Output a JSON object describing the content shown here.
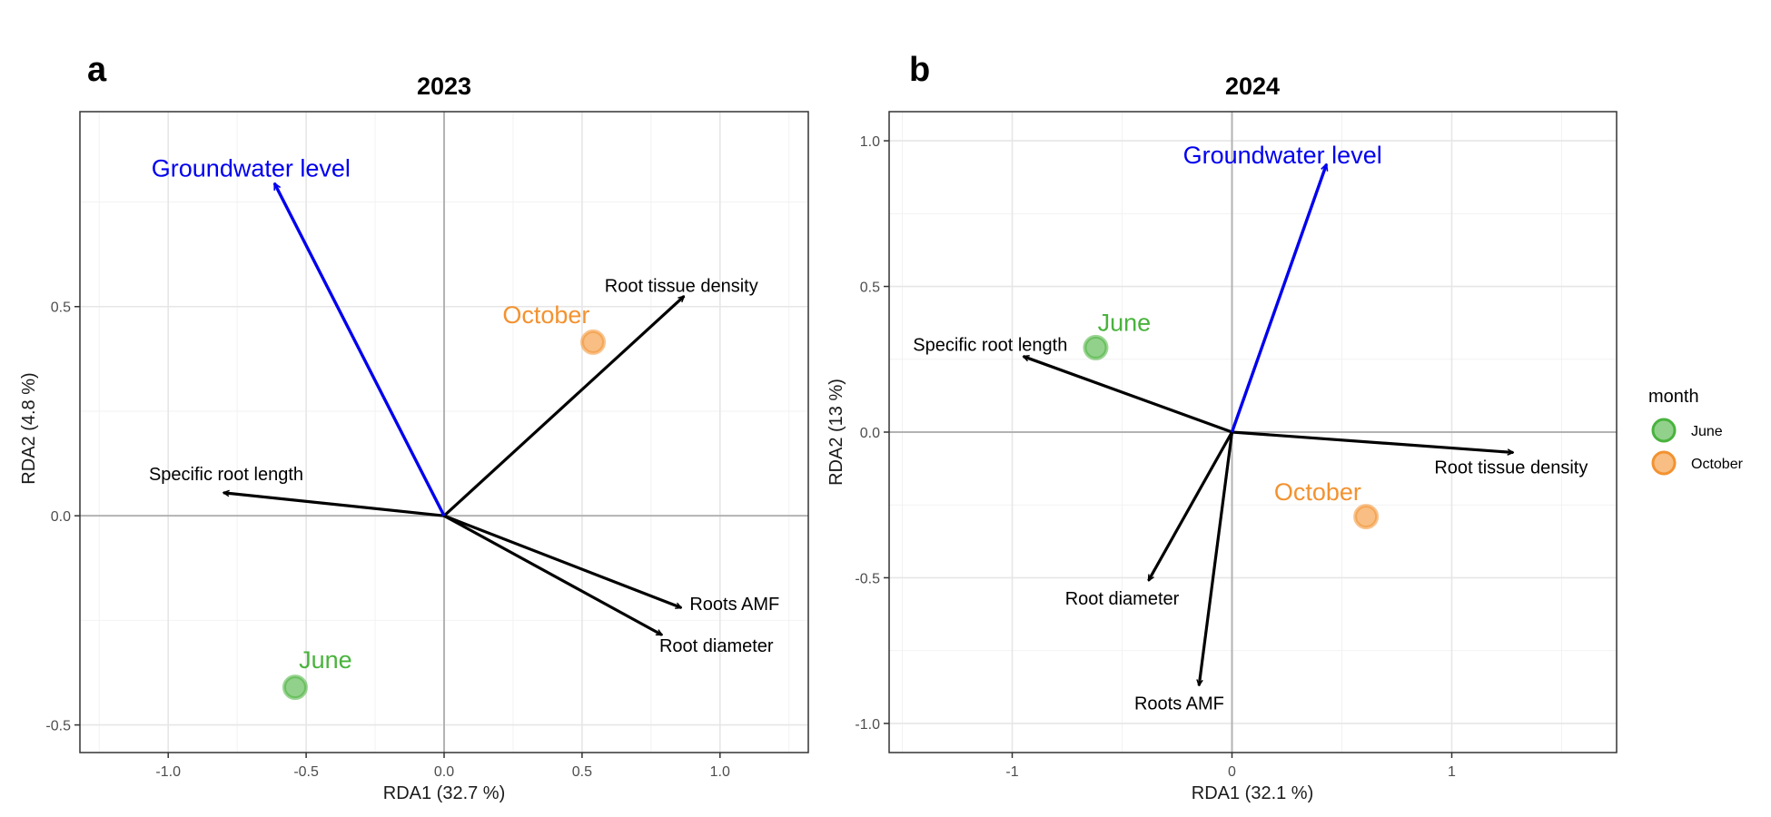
{
  "chart_data": [
    {
      "type": "scatter",
      "panel": "a",
      "title": "2023",
      "xlabel": "RDA1 (32.7 %)",
      "ylabel": "RDA2 (4.8 %)",
      "xlim": [
        -1.32,
        1.32
      ],
      "ylim": [
        -0.566,
        0.966
      ],
      "xticks": [
        -1.0,
        -0.5,
        0.0,
        0.5,
        1.0
      ],
      "xtick_labels": [
        "-1.0",
        "-0.5",
        "0.0",
        "0.5",
        "1.0"
      ],
      "yticks": [
        -0.5,
        0.0,
        0.5
      ],
      "ytick_labels": [
        "-0.5",
        "0.0",
        "0.5"
      ],
      "grid": true,
      "sites": [
        {
          "name": "June",
          "x": -0.54,
          "y": -0.41,
          "label_dx": 0.11,
          "label_dy": 0.065
        },
        {
          "name": "October",
          "x": 0.54,
          "y": 0.415,
          "label_dx": -0.17,
          "label_dy": 0.065
        }
      ],
      "species_arrows": [
        {
          "label": "Root tissue density",
          "x": 0.87,
          "y": 0.525,
          "label_x": 0.86,
          "label_y": 0.55,
          "anchor": "middle"
        },
        {
          "label": "Specific root length",
          "x": -0.8,
          "y": 0.055,
          "label_x": -0.79,
          "label_y": 0.1,
          "anchor": "middle"
        },
        {
          "label": "Roots AMF",
          "x": 0.86,
          "y": -0.22,
          "label_x": 0.89,
          "label_y": -0.21,
          "anchor": "start"
        },
        {
          "label": "Root diameter",
          "x": 0.79,
          "y": -0.285,
          "label_x": 0.78,
          "label_y": -0.31,
          "anchor": "start"
        }
      ],
      "env_arrows": [
        {
          "label": "Groundwater level",
          "x": -0.615,
          "y": 0.795,
          "label_x": -0.7,
          "label_y": 0.83,
          "anchor": "middle"
        }
      ]
    },
    {
      "type": "scatter",
      "panel": "b",
      "title": "2024",
      "xlabel": "RDA1 (32.1 %)",
      "ylabel": "RDA2 (13 %)",
      "xlim": [
        -1.56,
        1.75
      ],
      "ylim": [
        -1.1,
        1.1
      ],
      "xticks": [
        -1,
        0,
        1
      ],
      "xtick_labels": [
        "-1",
        "0",
        "1"
      ],
      "yticks": [
        -1.0,
        -0.5,
        0.0,
        0.5,
        1.0
      ],
      "ytick_labels": [
        "-1.0",
        "-0.5",
        "0.0",
        "0.5",
        "1.0"
      ],
      "grid": true,
      "sites": [
        {
          "name": "June",
          "x": -0.62,
          "y": 0.29,
          "label_dx": 0.13,
          "label_dy": 0.085
        },
        {
          "name": "October",
          "x": 0.61,
          "y": -0.29,
          "label_dx": -0.22,
          "label_dy": 0.085
        }
      ],
      "species_arrows": [
        {
          "label": "Specific root length",
          "x": -0.95,
          "y": 0.26,
          "label_x": -1.1,
          "label_y": 0.3,
          "anchor": "middle"
        },
        {
          "label": "Root tissue density",
          "x": 1.28,
          "y": -0.07,
          "label_x": 1.27,
          "label_y": -0.12,
          "anchor": "middle"
        },
        {
          "label": "Root diameter",
          "x": -0.38,
          "y": -0.51,
          "label_x": -0.5,
          "label_y": -0.57,
          "anchor": "middle"
        },
        {
          "label": "Roots AMF",
          "x": -0.15,
          "y": -0.87,
          "label_x": -0.24,
          "label_y": -0.93,
          "anchor": "middle"
        }
      ],
      "env_arrows": [
        {
          "label": "Groundwater level",
          "x": 0.43,
          "y": 0.92,
          "label_x": 0.23,
          "label_y": 0.95,
          "anchor": "middle"
        }
      ]
    }
  ],
  "legend": {
    "title": "month",
    "placement": "right",
    "items": [
      {
        "label": "June",
        "color": "#49B33D"
      },
      {
        "label": "October",
        "color": "#F39230"
      }
    ]
  },
  "colors": {
    "june": "#49B33D",
    "october": "#F39230",
    "env_arrow": "#0000EE",
    "species_arrow": "#000000",
    "grid_major": "#E6E6E6",
    "grid_minor": "#F2F2F2",
    "zero_line": "#B3B3B3",
    "panel_border": "#333333"
  }
}
